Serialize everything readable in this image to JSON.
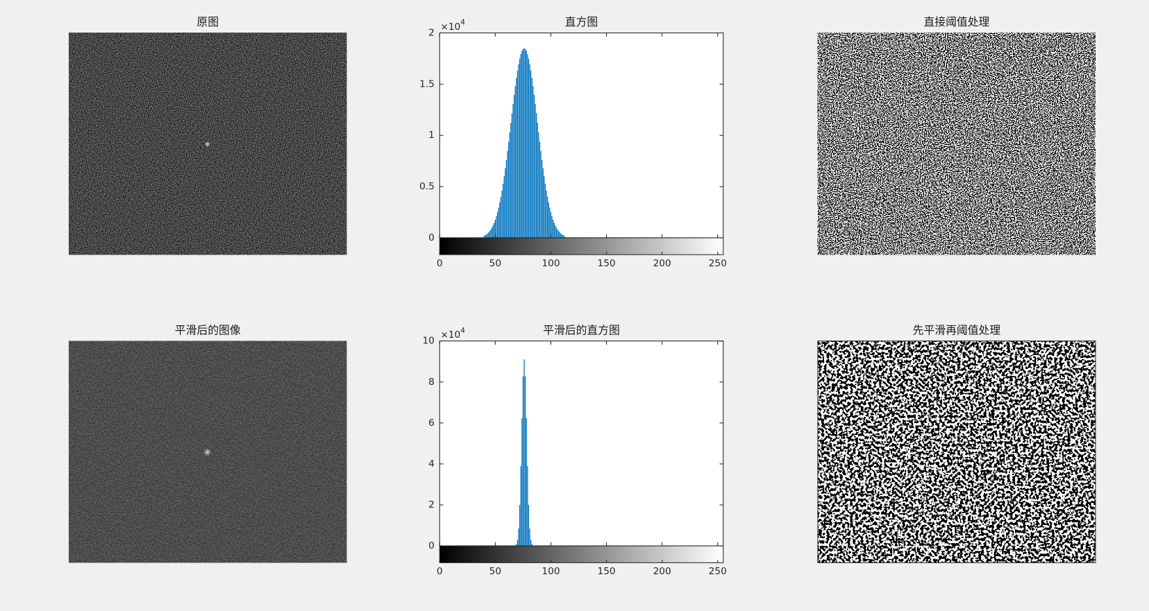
{
  "chart_data": [
    {
      "type": "image",
      "title": "原图"
    },
    {
      "type": "bar",
      "title": "直方图",
      "x": [
        40,
        41,
        42,
        43,
        44,
        45,
        46,
        47,
        48,
        49,
        50,
        51,
        52,
        53,
        54,
        55,
        56,
        57,
        58,
        59,
        60,
        61,
        62,
        63,
        64,
        65,
        66,
        67,
        68,
        69,
        70,
        71,
        72,
        73,
        74,
        75,
        76,
        77,
        78,
        79,
        80,
        81,
        82,
        83,
        84,
        85,
        86,
        87,
        88,
        89,
        90,
        91,
        92,
        93,
        94,
        95,
        96,
        97,
        98,
        99,
        100,
        101,
        102,
        103,
        104,
        105,
        106,
        107,
        108,
        109,
        110,
        111,
        112
      ],
      "values": [
        210,
        260,
        340,
        420,
        530,
        660,
        810,
        1000,
        1220,
        1470,
        1770,
        2110,
        2500,
        2950,
        3450,
        4000,
        4610,
        5280,
        6010,
        6790,
        7610,
        8470,
        9370,
        10290,
        11220,
        12160,
        13070,
        13960,
        14810,
        15610,
        16330,
        16960,
        17500,
        17930,
        18250,
        18440,
        18500,
        18440,
        18250,
        17930,
        17500,
        16960,
        16330,
        15610,
        14810,
        13960,
        13070,
        12160,
        11220,
        10290,
        9370,
        8470,
        7610,
        6790,
        6010,
        5280,
        4610,
        4000,
        3450,
        2950,
        2500,
        2110,
        1770,
        1470,
        1220,
        1000,
        810,
        660,
        530,
        420,
        340,
        260,
        210
      ],
      "color": "#0072bd",
      "xlim": [
        0,
        255
      ],
      "xticks": [
        0,
        50,
        100,
        150,
        200,
        250
      ],
      "ylim": [
        0,
        20000
      ],
      "yticks": [
        0,
        {
          "value": 5000,
          "label": "0.5"
        },
        {
          "value": 10000,
          "label": "1"
        },
        {
          "value": 15000,
          "label": "1.5"
        },
        {
          "value": 20000,
          "label": "2"
        }
      ],
      "exponent": {
        "base": "×10",
        "power": "4"
      }
    },
    {
      "type": "binary",
      "title": "直接阈值处理"
    },
    {
      "type": "image-smooth",
      "title": "平滑后的图像"
    },
    {
      "type": "bar",
      "title": "平滑后的直方图",
      "x": [
        69,
        70,
        71,
        72,
        73,
        74,
        75,
        76,
        77,
        78,
        79,
        80,
        81,
        82,
        83
      ],
      "values": [
        900,
        3000,
        8500,
        20000,
        38900,
        62300,
        82800,
        91000,
        82800,
        62300,
        38900,
        20000,
        8500,
        3000,
        900
      ],
      "color": "#0072bd",
      "xlim": [
        0,
        255
      ],
      "xticks": [
        0,
        50,
        100,
        150,
        200,
        250
      ],
      "ylim": [
        0,
        100000
      ],
      "yticks": [
        0,
        {
          "value": 20000,
          "label": "2"
        },
        {
          "value": 40000,
          "label": "4"
        },
        {
          "value": 60000,
          "label": "6"
        },
        {
          "value": 80000,
          "label": "8"
        },
        {
          "value": 100000,
          "label": "10"
        }
      ],
      "exponent": {
        "base": "×10",
        "power": "4"
      }
    },
    {
      "type": "binary-smooth",
      "title": "先平滑再阈值处理"
    }
  ]
}
